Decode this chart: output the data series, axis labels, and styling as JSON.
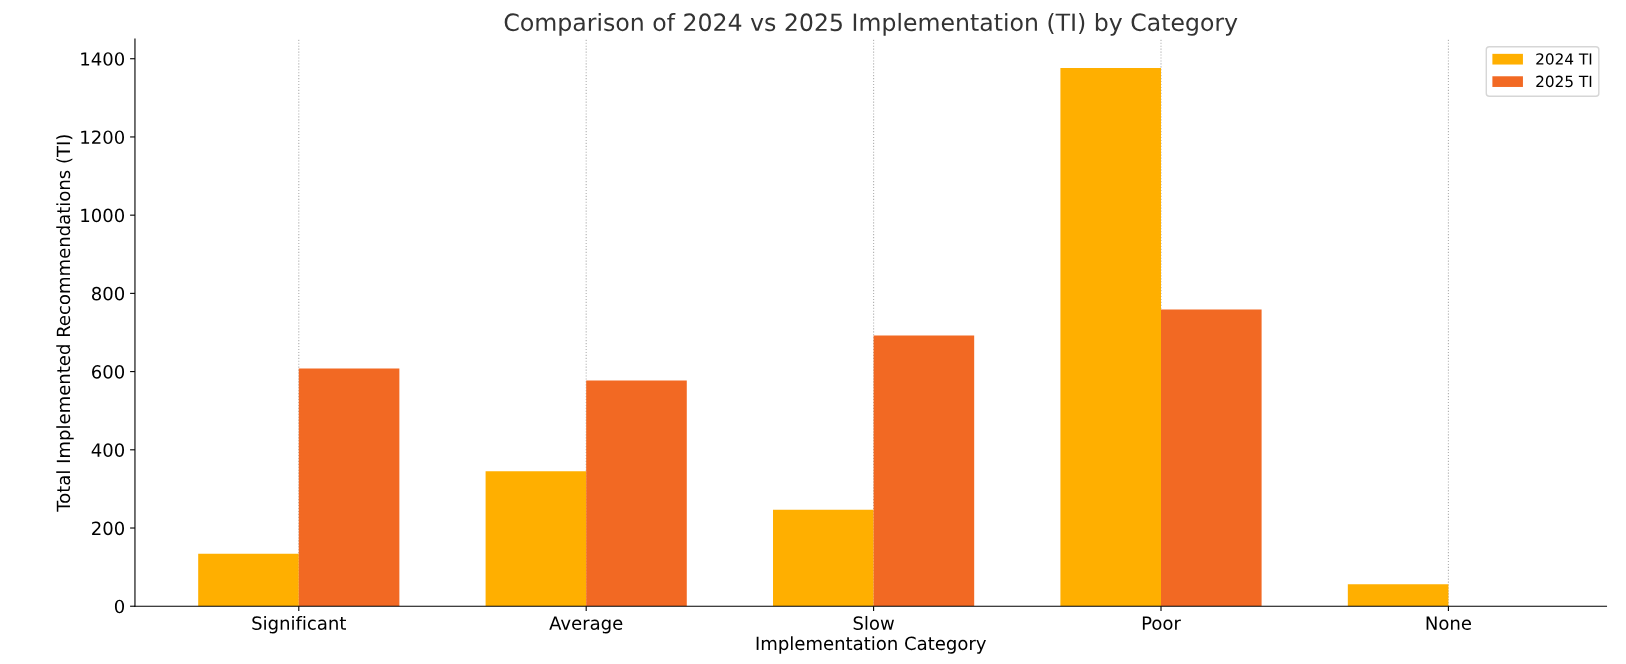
{
  "chart_data": {
    "type": "bar",
    "title": "Comparison of 2024 vs 2025 Implementation (TI) by Category",
    "xlabel": "Implementation Category",
    "ylabel": "Total Implemented Recommendations (TI)",
    "categories": [
      "Significant",
      "Average",
      "Slow",
      "Poor",
      "None"
    ],
    "series": [
      {
        "name": "2024 TI",
        "color": "#ffaf00",
        "values": [
          134,
          345,
          247,
          1376,
          56
        ]
      },
      {
        "name": "2025 TI",
        "color": "#f26923",
        "values": [
          608,
          577,
          692,
          759,
          0
        ]
      }
    ],
    "ylim": [
      0,
      1450
    ],
    "yticks": [
      0,
      200,
      400,
      600,
      800,
      1000,
      1200,
      1400
    ],
    "grid": "x",
    "legend": "top right"
  }
}
